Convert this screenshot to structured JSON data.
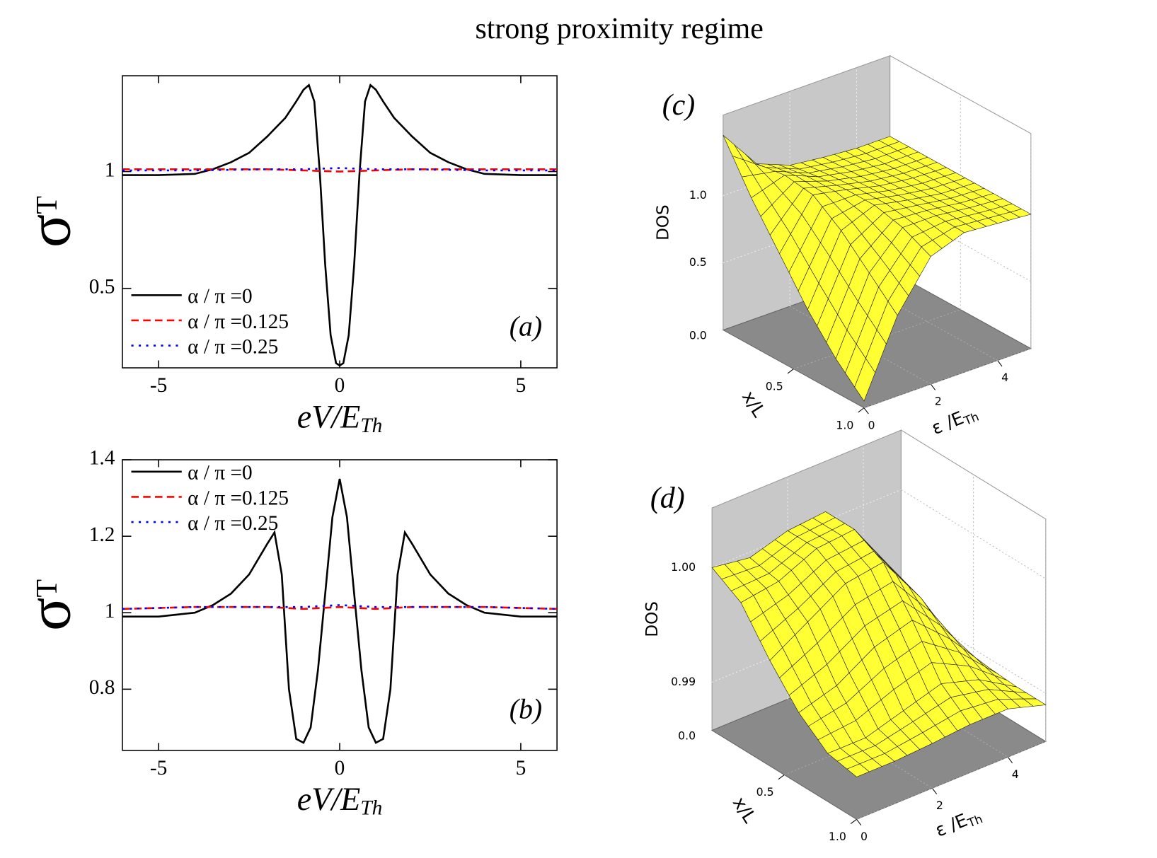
{
  "title": "strong proximity regime",
  "chart_data": [
    {
      "type": "line",
      "annotation": "(a)",
      "xlabel": "eV/E",
      "xlabel_sub": "Th",
      "ylabel": "σ",
      "ylabel_sub": "T",
      "xlim": [
        -6,
        6
      ],
      "ylim": [
        0.16,
        1.41
      ],
      "xticks": [
        -5,
        0,
        5
      ],
      "yticks": [
        0.5,
        1
      ],
      "legend": "lower left",
      "series": [
        {
          "name": "α / π =0",
          "color": "#000000",
          "dash": "solid",
          "x": [
            -6,
            -5,
            -4,
            -3.5,
            -3,
            -2.5,
            -2,
            -1.5,
            -1.2,
            -1,
            -0.85,
            -0.7,
            -0.55,
            -0.4,
            -0.25,
            -0.1,
            0,
            0.1,
            0.25,
            0.4,
            0.55,
            0.7,
            0.85,
            1,
            1.2,
            1.5,
            2,
            2.5,
            3,
            3.5,
            4,
            5,
            6
          ],
          "values": [
            0.985,
            0.985,
            0.99,
            1.01,
            1.04,
            1.08,
            1.15,
            1.23,
            1.3,
            1.35,
            1.37,
            1.3,
            1.0,
            0.6,
            0.3,
            0.18,
            0.17,
            0.18,
            0.3,
            0.6,
            1.0,
            1.3,
            1.37,
            1.35,
            1.3,
            1.23,
            1.15,
            1.08,
            1.04,
            1.01,
            0.99,
            0.985,
            0.985
          ]
        },
        {
          "name": "α / π =0.125",
          "color": "#ff0000",
          "dash": "dashed",
          "x": [
            -6,
            -4,
            -2,
            -1,
            0,
            1,
            2,
            4,
            6
          ],
          "values": [
            1.01,
            1.01,
            1.01,
            1.005,
            1.0,
            1.005,
            1.01,
            1.01,
            1.01
          ]
        },
        {
          "name": "α / π =0.25",
          "color": "#0000ff",
          "dash": "dotted",
          "x": [
            -6,
            -4,
            -2,
            -1,
            0,
            1,
            2,
            4,
            6
          ],
          "values": [
            1.005,
            1.005,
            1.01,
            1.01,
            1.015,
            1.01,
            1.01,
            1.005,
            1.005
          ]
        }
      ]
    },
    {
      "type": "line",
      "annotation": "(b)",
      "xlabel": "eV/E",
      "xlabel_sub": "Th",
      "ylabel": "σ",
      "ylabel_sub": "T",
      "xlim": [
        -6,
        6
      ],
      "ylim": [
        0.64,
        1.4
      ],
      "xticks": [
        -5,
        0,
        5
      ],
      "yticks": [
        0.8,
        1,
        1.2,
        1.4
      ],
      "legend": "upper left",
      "series": [
        {
          "name": "α / π =0",
          "color": "#000000",
          "dash": "solid",
          "x": [
            -6,
            -5,
            -4,
            -3.5,
            -3,
            -2.5,
            -2,
            -1.8,
            -1.6,
            -1.4,
            -1.2,
            -1,
            -0.8,
            -0.6,
            -0.4,
            -0.2,
            0,
            0.2,
            0.4,
            0.6,
            0.8,
            1,
            1.2,
            1.4,
            1.6,
            1.8,
            2,
            2.5,
            3,
            3.5,
            4,
            5,
            6
          ],
          "values": [
            0.99,
            0.99,
            1.0,
            1.02,
            1.05,
            1.1,
            1.18,
            1.21,
            1.1,
            0.8,
            0.67,
            0.66,
            0.7,
            0.85,
            1.05,
            1.25,
            1.35,
            1.25,
            1.05,
            0.85,
            0.7,
            0.66,
            0.67,
            0.8,
            1.1,
            1.21,
            1.18,
            1.1,
            1.05,
            1.02,
            1.0,
            0.99,
            0.99
          ]
        },
        {
          "name": "α / π =0.125",
          "color": "#ff0000",
          "dash": "dashed",
          "x": [
            -6,
            -4,
            -2,
            -1,
            0,
            1,
            2,
            4,
            6
          ],
          "values": [
            1.01,
            1.015,
            1.015,
            1.01,
            1.015,
            1.01,
            1.015,
            1.015,
            1.01
          ]
        },
        {
          "name": "α / π =0.25",
          "color": "#0000ff",
          "dash": "dotted",
          "x": [
            -6,
            -4,
            -2,
            -1,
            0,
            1,
            2,
            4,
            6
          ],
          "values": [
            1.01,
            1.015,
            1.015,
            1.015,
            1.02,
            1.015,
            1.015,
            1.015,
            1.01
          ]
        }
      ]
    },
    {
      "type": "surface",
      "annotation": "(c)",
      "xlabel": "x/L",
      "ylabel": "ε /E",
      "ylabel_sub": "Th",
      "zlabel": "DOS",
      "surface_color": "#ffff33",
      "xlim": [
        0,
        1
      ],
      "ylim": [
        0,
        5
      ],
      "zlim": [
        0,
        1.6
      ],
      "xticks": [
        0.5,
        {
          "value": 1,
          "label": "1.0"
        }
      ],
      "yticks": [
        0,
        2,
        4
      ],
      "zticks": [
        {
          "value": 0,
          "label": "0.0"
        },
        0.5,
        {
          "value": 1,
          "label": "1.0"
        }
      ],
      "x": [
        0,
        0.2,
        0.4,
        0.6,
        0.8,
        1
      ],
      "y": [
        0,
        1,
        2,
        3,
        4,
        5
      ],
      "z": [
        [
          1.45,
          1.15,
          1.05,
          1.02,
          1.0,
          1.0
        ],
        [
          1.1,
          1.18,
          1.08,
          1.03,
          1.0,
          1.0
        ],
        [
          0.8,
          1.15,
          1.1,
          1.04,
          1.01,
          1.0
        ],
        [
          0.5,
          1.0,
          1.1,
          1.05,
          1.01,
          1.0
        ],
        [
          0.25,
          0.8,
          1.05,
          1.05,
          1.02,
          1.0
        ],
        [
          0.05,
          0.6,
          0.95,
          1.04,
          1.02,
          1.0
        ]
      ]
    },
    {
      "type": "surface",
      "annotation": "(d)",
      "xlabel": "x/L",
      "ylabel": "ε /E",
      "ylabel_sub": "Th",
      "zlabel": "DOS",
      "surface_color": "#ffff33",
      "z_axis_break": true,
      "xlim": [
        0,
        1
      ],
      "ylim": [
        0,
        5
      ],
      "zlim": [
        0.9858,
        1.0052
      ],
      "xticks": [
        0.5,
        {
          "value": 1,
          "label": "1.0"
        }
      ],
      "yticks": [
        0,
        2,
        4
      ],
      "zticks": [
        {
          "value": 0,
          "label": "0.0"
        },
        0.99,
        {
          "value": 1,
          "label": "1.00"
        }
      ],
      "x": [
        0,
        0.2,
        0.4,
        0.6,
        0.8,
        1
      ],
      "y": [
        0,
        1,
        2,
        3,
        4,
        5
      ],
      "z": [
        [
          1.0,
          0.9995,
          1.0005,
          1.0008,
          0.996,
          0.9895
        ],
        [
          0.9985,
          0.999,
          1.0005,
          1.0008,
          0.996,
          0.9895
        ],
        [
          0.995,
          0.997,
          0.999,
          0.9995,
          0.995,
          0.9893
        ],
        [
          0.992,
          0.993,
          0.995,
          0.996,
          0.993,
          0.9892
        ],
        [
          0.99,
          0.99,
          0.991,
          0.992,
          0.991,
          0.989
        ],
        [
          0.9895,
          0.9895,
          0.9897,
          0.99,
          0.99,
          0.989
        ]
      ]
    }
  ]
}
